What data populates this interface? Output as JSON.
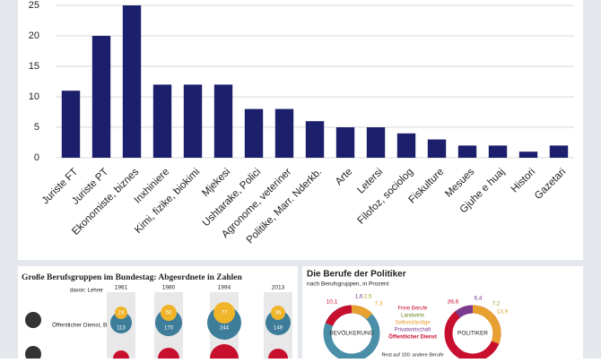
{
  "chart_data": {
    "type": "bar",
    "categories": [
      "Juriste FT",
      "Juriste PT",
      "Ekonomiste, biznes",
      "Inxhiniere",
      "Kimi, fizike, biokimi",
      "Mjekesi",
      "Ushtarake, Polici",
      "Agronome, veteriner",
      "Politike, Marr. Nderkb.",
      "Arte",
      "Letersi",
      "Filofoz, sociolog",
      "Fiskulture",
      "Mesues",
      "Gjuhe e huaj",
      "Histori",
      "Gazetari"
    ],
    "values": [
      11,
      20,
      25,
      12,
      12,
      12,
      8,
      8,
      6,
      5,
      5,
      4,
      3,
      2,
      2,
      1,
      2
    ],
    "color": "#1c1f6b",
    "ylim": [
      0,
      25
    ],
    "yticks": [
      0,
      5,
      10,
      15,
      20,
      25
    ],
    "grid": true
  },
  "insets": {
    "left": {
      "title": "Große Berufsgruppen im Bundestag: Abgeordnete in Zahlen",
      "years": [
        "1961",
        "1980",
        "1994",
        "2013"
      ],
      "row_labels": [
        "davon: Lehrer",
        "Öffentlicher Dienst, Beamte"
      ],
      "top_numbers": [
        "24",
        "50",
        "77",
        "36"
      ],
      "bottom_numbers": [
        "113",
        "170",
        "244",
        "149"
      ]
    },
    "right": {
      "title": "Die Berufe der Politiker",
      "subtitle": "nach Berufsgruppen, in Prozent",
      "left_donut": {
        "label": "BEVÖLKERUNG",
        "numbers": [
          "10,1",
          "1,6",
          "2,5",
          "7,3"
        ]
      },
      "right_donut": {
        "label": "POLITIKER",
        "numbers": [
          "39,6",
          "6,4",
          "7,2",
          "13,9"
        ]
      },
      "legend": [
        "Freie Berufe",
        "Landwirte",
        "Selbstständige",
        "Privatwirtschaft",
        "Öffentlicher Dienst"
      ],
      "note": "Rest auf 100: andere Berufe"
    }
  }
}
